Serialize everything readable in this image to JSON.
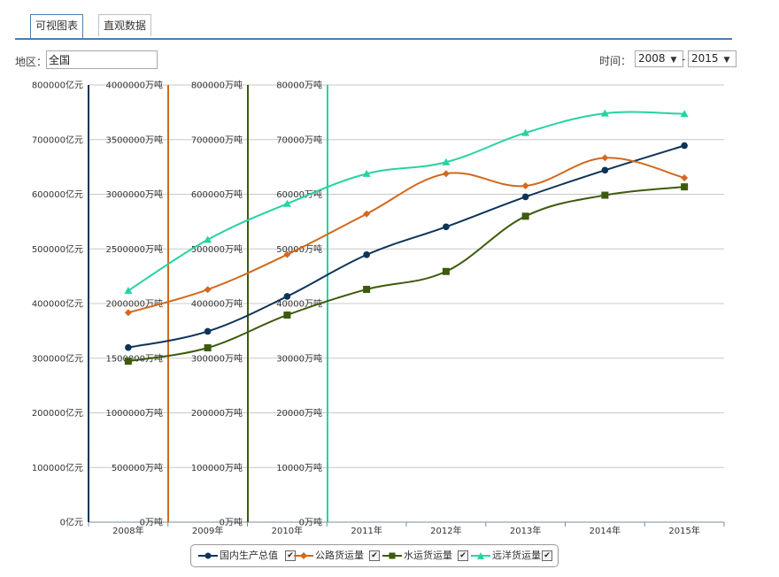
{
  "tabs": [
    {
      "label": "可视图表",
      "active": true
    },
    {
      "label": "直观数据",
      "active": false
    }
  ],
  "filters": {
    "region_label": "地区：",
    "region_value": "全国",
    "time_label": "时间：",
    "start_year": "2008",
    "end_year": "2015",
    "separator": "-"
  },
  "icons": {
    "dropdown": "triangle-down-icon",
    "checkbox": "checkmark-icon"
  },
  "chart_data": {
    "type": "line",
    "categories": [
      "2008年",
      "2009年",
      "2010年",
      "2011年",
      "2012年",
      "2013年",
      "2014年",
      "2015年"
    ],
    "axes": [
      {
        "series": "国内生产总值",
        "color": "#0d3459",
        "max": 800000,
        "step": 100000,
        "ticks": [
          "0亿元",
          "100000亿元",
          "200000亿元",
          "300000亿元",
          "400000亿元",
          "500000亿元",
          "600000亿元",
          "700000亿元",
          "800000亿元"
        ]
      },
      {
        "series": "公路货运量",
        "color": "#d2691e",
        "max": 4000000,
        "step": 500000,
        "ticks": [
          "0万吨",
          "500000万吨",
          "1000000万吨",
          "1500000万吨",
          "2000000万吨",
          "2500000万吨",
          "3000000万吨",
          "3500000万吨",
          "4000000万吨"
        ]
      },
      {
        "series": "水运货运量",
        "color": "#3d5a0d",
        "max": 800000,
        "step": 100000,
        "ticks": [
          "0万吨",
          "100000万吨",
          "200000万吨",
          "300000万吨",
          "400000万吨",
          "500000万吨",
          "600000万吨",
          "700000万吨",
          "800000万吨"
        ]
      },
      {
        "series": "远洋货运量",
        "color": "#26d3a2",
        "max": 80000,
        "step": 10000,
        "ticks": [
          "0万吨",
          "10000万吨",
          "20000万吨",
          "30000万吨",
          "40000万吨",
          "50000万吨",
          "60000万吨",
          "70000万吨",
          "80000万吨"
        ]
      }
    ],
    "series": [
      {
        "name": "国内生产总值",
        "color": "#0d3459",
        "marker": "circle",
        "axis": 0,
        "values": [
          319516,
          349081,
          413030,
          489301,
          540367,
          595244,
          643974,
          689052
        ]
      },
      {
        "name": "公路货运量",
        "color": "#d2691e",
        "marker": "diamond",
        "axis": 1,
        "values": [
          1916759,
          2127834,
          2448052,
          2820100,
          3188475,
          3076648,
          3332838,
          3150019
        ]
      },
      {
        "name": "水运货运量",
        "color": "#3d5a0d",
        "marker": "square",
        "axis": 2,
        "values": [
          294510,
          318996,
          378949,
          425968,
          458705,
          559785,
          598283,
          613567
        ]
      },
      {
        "name": "远洋货运量",
        "color": "#26d3a2",
        "marker": "triangle",
        "axis": 3,
        "values": [
          42352,
          51681,
          58268,
          63742,
          65874,
          71239,
          74800,
          74700
        ]
      }
    ],
    "legend": [
      {
        "name": "国内生产总值",
        "checked": true
      },
      {
        "name": "公路货运量",
        "checked": true
      },
      {
        "name": "水运货运量",
        "checked": true
      },
      {
        "name": "远洋货运量",
        "checked": true
      }
    ],
    "grid": true,
    "legend_position": "bottom-center"
  }
}
